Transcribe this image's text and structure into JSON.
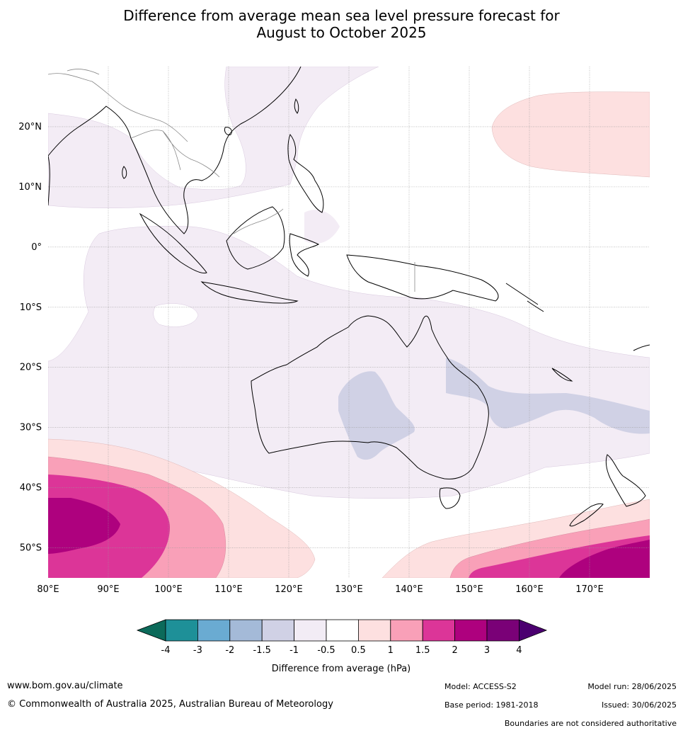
{
  "title_line1": "Difference from average mean sea level pressure forecast for",
  "title_line2": "August to October 2025",
  "lat_labels": [
    "20°N",
    "10°N",
    "0°",
    "10°S",
    "20°S",
    "30°S",
    "40°S",
    "50°S"
  ],
  "lon_labels": [
    "80°E",
    "90°E",
    "100°E",
    "110°E",
    "120°E",
    "130°E",
    "140°E",
    "150°E",
    "160°E",
    "170°E"
  ],
  "colorbar": {
    "colors": [
      "#0c6a5a",
      "#1e9098",
      "#6aabd2",
      "#a4bad8",
      "#d0d1e5",
      "#f2ecf5",
      "#ffffff",
      "#fde0e0",
      "#f9a0b8",
      "#dc3598",
      "#ae017e",
      "#7a0177",
      "#4b0070"
    ],
    "tick_labels": [
      "-4",
      "-3",
      "-2",
      "-1.5",
      "-1",
      "-0.5",
      "0.5",
      "1",
      "1.5",
      "2",
      "3",
      "4"
    ],
    "label": "Difference from average (hPa)"
  },
  "footer": {
    "url": "www.bom.gov.au/climate",
    "copyright": "© Commonwealth of Australia 2025, Australian Bureau of Meteorology",
    "model": "Model: ACCESS-S2",
    "model_run": "Model run: 28/06/2025",
    "base_period": "Base period: 1981-2018",
    "issued": "Issued: 30/06/2025",
    "disclaimer": "Boundaries are not considered authoritative"
  }
}
